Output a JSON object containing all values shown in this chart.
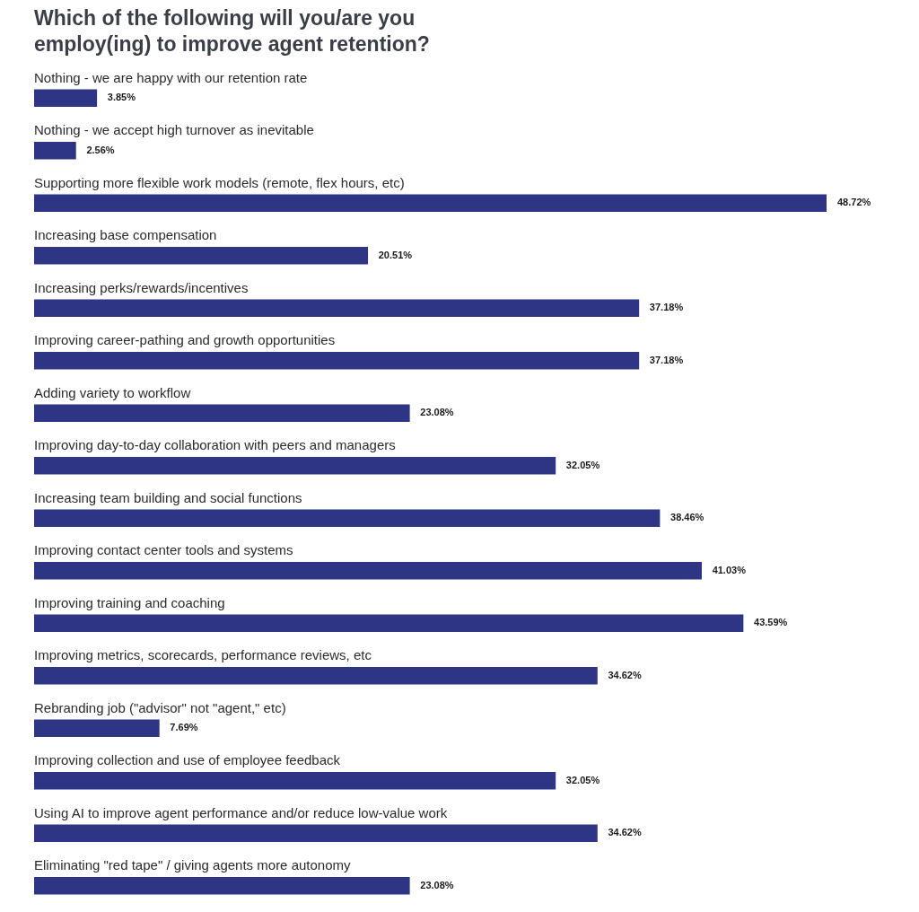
{
  "chart_data": {
    "type": "bar",
    "orientation": "horizontal",
    "title": "Which of the following will you/are you employ(ing) to improve agent retention?",
    "categories": [
      "Nothing - we are happy with our retention rate",
      "Nothing - we accept high turnover as inevitable",
      "Supporting more flexible work models (remote, flex hours, etc)",
      "Increasing base compensation",
      "Increasing perks/rewards/incentives",
      "Improving career-pathing and growth opportunities",
      "Adding variety to workflow",
      "Improving day-to-day collaboration with peers and managers",
      "Increasing team building and social functions",
      "Improving contact center tools and systems",
      "Improving training and coaching",
      "Improving metrics, scorecards, performance reviews, etc",
      "Rebranding job (\"advisor\" not \"agent,\" etc)",
      "Improving collection and use of employee feedback",
      "Using AI to improve agent performance and/or reduce low-value work",
      "Eliminating \"red tape\" / giving agents more autonomy"
    ],
    "values": [
      3.85,
      2.56,
      48.72,
      20.51,
      37.18,
      37.18,
      23.08,
      32.05,
      38.46,
      41.03,
      43.59,
      34.62,
      7.69,
      32.05,
      34.62,
      23.08
    ],
    "value_labels": [
      "3.85%",
      "2.56%",
      "48.72%",
      "20.51%",
      "37.18%",
      "37.18%",
      "23.08%",
      "32.05%",
      "38.46%",
      "41.03%",
      "43.59%",
      "34.62%",
      "7.69%",
      "32.05%",
      "34.62%",
      "23.08%"
    ],
    "color": "#2e3584"
  }
}
